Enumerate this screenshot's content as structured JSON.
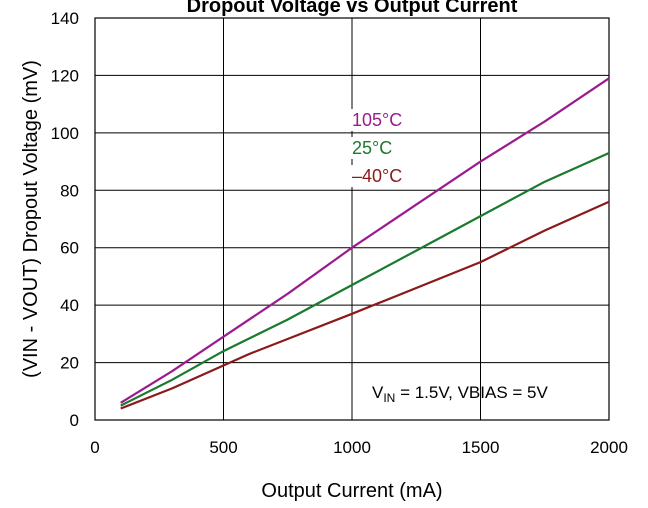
{
  "chart_data": {
    "type": "line",
    "title": "Dropout Voltage vs Output Current",
    "xlabel": "Output Current (mA)",
    "ylabel": "(VIN - VOUT) Dropout Voltage (mV)",
    "xlim": [
      0,
      2000
    ],
    "ylim": [
      0,
      140
    ],
    "xticks": [
      0,
      500,
      1000,
      1500,
      2000
    ],
    "yticks": [
      0,
      20,
      40,
      60,
      80,
      100,
      120,
      140
    ],
    "grid": true,
    "legend_placement": "center inline labels",
    "annotation": {
      "prefix": "V",
      "subscript": "IN",
      "suffix": " = 1.5V, VBIAS = 5V"
    },
    "series": [
      {
        "name": "105°C",
        "color": "#9b1b8f",
        "x": [
          100,
          300,
          500,
          750,
          1000,
          1250,
          1500,
          1750,
          2000
        ],
        "y": [
          6,
          17,
          29,
          44,
          60,
          75,
          90,
          104,
          119
        ]
      },
      {
        "name": "25°C",
        "color": "#1a7a2e",
        "x": [
          100,
          300,
          500,
          750,
          1000,
          1250,
          1500,
          1750,
          2000
        ],
        "y": [
          5,
          14,
          24,
          35,
          47,
          59,
          71,
          83,
          93
        ]
      },
      {
        "name": "–40°C",
        "color": "#8b1a1a",
        "x": [
          100,
          300,
          600,
          1000,
          1500,
          1750,
          2000
        ],
        "y": [
          4,
          11,
          23,
          37,
          55,
          66,
          76
        ]
      }
    ]
  }
}
